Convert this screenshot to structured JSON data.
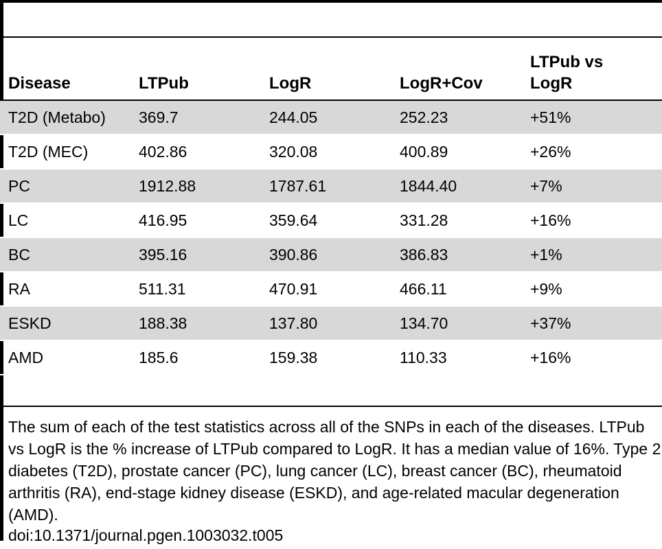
{
  "table": {
    "headers": [
      "Disease",
      "LTPub",
      "LogR",
      "LogR+Cov",
      "LTPub vs LogR"
    ],
    "header_last_line1": "LTPub vs",
    "header_last_line2": "LogR",
    "rows": [
      [
        "T2D (Metabo)",
        "369.7",
        "244.05",
        "252.23",
        "+51%"
      ],
      [
        "T2D (MEC)",
        "402.86",
        "320.08",
        "400.89",
        "+26%"
      ],
      [
        "PC",
        "1912.88",
        "1787.61",
        "1844.40",
        "+7%"
      ],
      [
        "LC",
        "416.95",
        "359.64",
        "331.28",
        "+16%"
      ],
      [
        "BC",
        "395.16",
        "390.86",
        "386.83",
        "+1%"
      ],
      [
        "RA",
        "511.31",
        "470.91",
        "466.11",
        "+9%"
      ],
      [
        "ESKD",
        "188.38",
        "137.80",
        "134.70",
        "+37%"
      ],
      [
        "AMD",
        "185.6",
        "159.38",
        "110.33",
        "+16%"
      ]
    ],
    "shaded_color": "#d8d8d8"
  },
  "caption": "The sum of each of the test statistics across all of the SNPs in each of the diseases. LTPub vs LogR is the % increase of LTPub compared to LogR. It has a median value of 16%. Type 2 diabetes (T2D), prostate cancer (PC), lung cancer (LC), breast cancer (BC), rheumatoid arthritis (RA), end-stage kidney disease (ESKD), and age-related macular degeneration (AMD).",
  "doi": "doi:10.1371/journal.pgen.1003032.t005"
}
